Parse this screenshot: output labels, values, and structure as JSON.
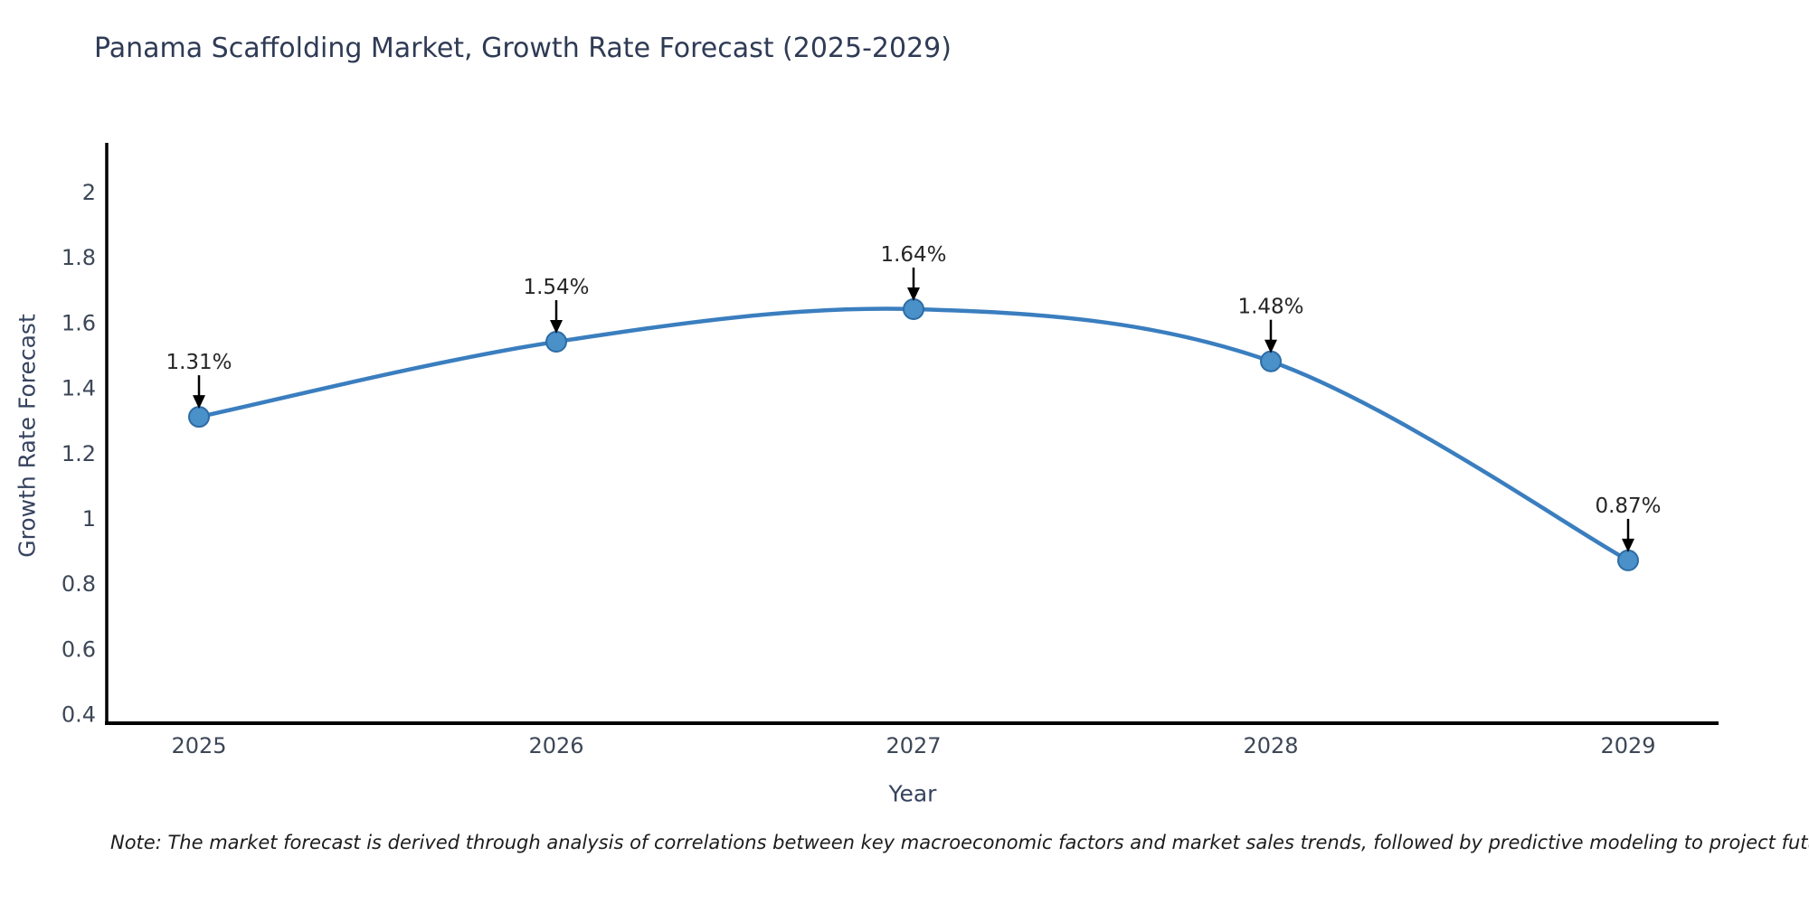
{
  "title": "Panama Scaffolding Market, Growth Rate Forecast (2025-2029)",
  "note": "Note: The market forecast is derived through analysis of correlations between key macroeconomic factors and market sales trends, followed by predictive modeling to project future sales",
  "chart_data": {
    "type": "line",
    "title": "Panama Scaffolding Market, Growth Rate Forecast (2025-2029)",
    "xlabel": "Year",
    "ylabel": "Growth Rate Forecast",
    "x": [
      2025,
      2026,
      2027,
      2028,
      2029
    ],
    "series": [
      {
        "name": "Growth Rate Forecast",
        "values": [
          1.31,
          1.54,
          1.64,
          1.48,
          0.87
        ]
      }
    ],
    "point_labels": [
      "1.31%",
      "1.54%",
      "1.64%",
      "1.48%",
      "0.87%"
    ],
    "yticks": [
      0.4,
      0.6,
      0.8,
      1,
      1.2,
      1.4,
      1.6,
      1.8,
      2
    ],
    "xticks": [
      2025,
      2026,
      2027,
      2028,
      2029
    ],
    "ylim": [
      0.37,
      2.15
    ],
    "grid": false,
    "legend": "none",
    "marker_style": "circle",
    "annotation_style": "down-arrow",
    "colors": {
      "line": "#3a7ebf",
      "marker": "#4a90c9",
      "marker_edge": "#2e6ca5",
      "tick_text": "#3c4757",
      "title_text": "#2f3b55",
      "annotation_text": "#262626",
      "arrow": "#000000",
      "spine": "#000000",
      "background": "#ffffff"
    }
  }
}
